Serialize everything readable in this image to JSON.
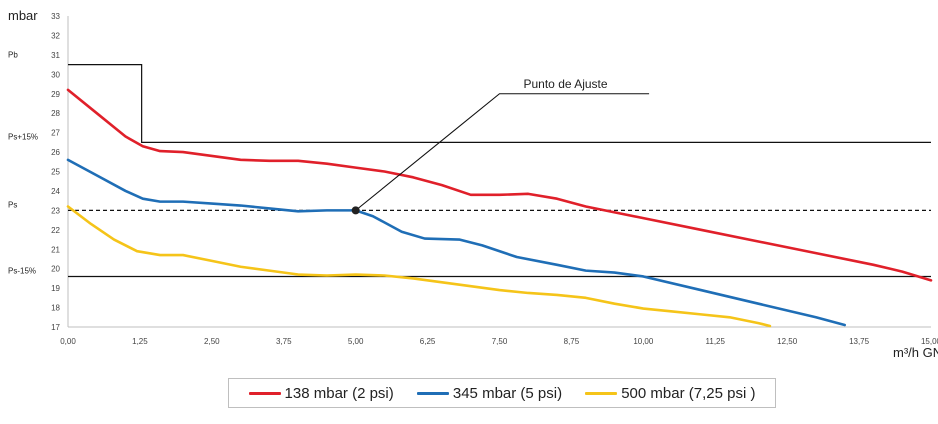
{
  "chart_data": {
    "type": "line",
    "title": "",
    "ylabel": "mbar",
    "xlabel": "m³/h GN",
    "xlim": [
      0,
      15
    ],
    "ylim": [
      17,
      33
    ],
    "x_ticks": [
      "0,00",
      "1,25",
      "2,50",
      "3,75",
      "5,00",
      "6,25",
      "7,50",
      "8,75",
      "10,00",
      "11,25",
      "12,50",
      "13,75",
      "15,00"
    ],
    "y_ticks": [
      "17",
      "18",
      "19",
      "20",
      "21",
      "22",
      "23",
      "24",
      "25",
      "26",
      "27",
      "28",
      "29",
      "30",
      "31",
      "32",
      "33"
    ],
    "grid": false,
    "legend_position": "bottom",
    "series": [
      {
        "name": "138 mbar (2 psi)",
        "color": "#e0202a",
        "points": [
          [
            0,
            29.2
          ],
          [
            0.5,
            28.0
          ],
          [
            1.0,
            26.8
          ],
          [
            1.3,
            26.3
          ],
          [
            1.6,
            26.05
          ],
          [
            2.0,
            26.0
          ],
          [
            2.5,
            25.8
          ],
          [
            3.0,
            25.6
          ],
          [
            3.5,
            25.55
          ],
          [
            4.0,
            25.55
          ],
          [
            4.5,
            25.4
          ],
          [
            5.0,
            25.2
          ],
          [
            5.5,
            25.0
          ],
          [
            6.0,
            24.7
          ],
          [
            6.5,
            24.3
          ],
          [
            7.0,
            23.8
          ],
          [
            7.5,
            23.8
          ],
          [
            8.0,
            23.85
          ],
          [
            8.5,
            23.6
          ],
          [
            9.0,
            23.2
          ],
          [
            10.0,
            22.6
          ],
          [
            11.0,
            22.0
          ],
          [
            12.0,
            21.4
          ],
          [
            13.0,
            20.8
          ],
          [
            14.0,
            20.2
          ],
          [
            14.5,
            19.85
          ],
          [
            15.0,
            19.4
          ]
        ]
      },
      {
        "name": "345 mbar (5 psi)",
        "color": "#1f6eb6",
        "points": [
          [
            0,
            25.6
          ],
          [
            0.5,
            24.8
          ],
          [
            1.0,
            24.0
          ],
          [
            1.3,
            23.6
          ],
          [
            1.6,
            23.45
          ],
          [
            2.0,
            23.45
          ],
          [
            2.5,
            23.35
          ],
          [
            3.0,
            23.25
          ],
          [
            3.5,
            23.1
          ],
          [
            4.0,
            22.95
          ],
          [
            4.5,
            23.0
          ],
          [
            5.0,
            23.0
          ],
          [
            5.3,
            22.7
          ],
          [
            5.8,
            21.9
          ],
          [
            6.2,
            21.55
          ],
          [
            6.8,
            21.5
          ],
          [
            7.2,
            21.2
          ],
          [
            7.8,
            20.6
          ],
          [
            8.5,
            20.2
          ],
          [
            9.0,
            19.9
          ],
          [
            9.5,
            19.8
          ],
          [
            10.0,
            19.6
          ],
          [
            11.0,
            18.9
          ],
          [
            12.0,
            18.2
          ],
          [
            13.0,
            17.5
          ],
          [
            13.5,
            17.1
          ]
        ]
      },
      {
        "name": "500 mbar (7,25 psi )",
        "color": "#f5c419",
        "points": [
          [
            0,
            23.2
          ],
          [
            0.4,
            22.3
          ],
          [
            0.8,
            21.5
          ],
          [
            1.2,
            20.9
          ],
          [
            1.6,
            20.7
          ],
          [
            2.0,
            20.7
          ],
          [
            2.5,
            20.4
          ],
          [
            3.0,
            20.1
          ],
          [
            3.5,
            19.9
          ],
          [
            4.0,
            19.7
          ],
          [
            4.5,
            19.65
          ],
          [
            5.0,
            19.7
          ],
          [
            5.5,
            19.65
          ],
          [
            6.0,
            19.5
          ],
          [
            6.5,
            19.3
          ],
          [
            7.0,
            19.1
          ],
          [
            7.5,
            18.9
          ],
          [
            8.0,
            18.75
          ],
          [
            8.5,
            18.65
          ],
          [
            9.0,
            18.5
          ],
          [
            9.5,
            18.2
          ],
          [
            10.0,
            17.95
          ],
          [
            10.5,
            17.8
          ],
          [
            11.0,
            17.65
          ],
          [
            11.5,
            17.5
          ],
          [
            12.0,
            17.2
          ],
          [
            12.2,
            17.05
          ]
        ]
      }
    ],
    "reference_lines": [
      {
        "label": "Pb",
        "y": 30.5,
        "style": "solid"
      },
      {
        "label": "Ps+15%",
        "y": 26.5,
        "style": "solid"
      },
      {
        "label": "Ps",
        "y": 23.0,
        "style": "dashed"
      },
      {
        "label": "Ps-15%",
        "y": 19.6,
        "style": "solid"
      }
    ],
    "step_line": [
      [
        0,
        30.5
      ],
      [
        1.28,
        30.5
      ],
      [
        1.28,
        26.5
      ],
      [
        15,
        26.5
      ]
    ],
    "annotation": {
      "text": "Punto de Ajuste",
      "point": [
        5.0,
        23.0
      ],
      "elbow": [
        7.5,
        29.0
      ],
      "end_x": 10.1
    }
  }
}
